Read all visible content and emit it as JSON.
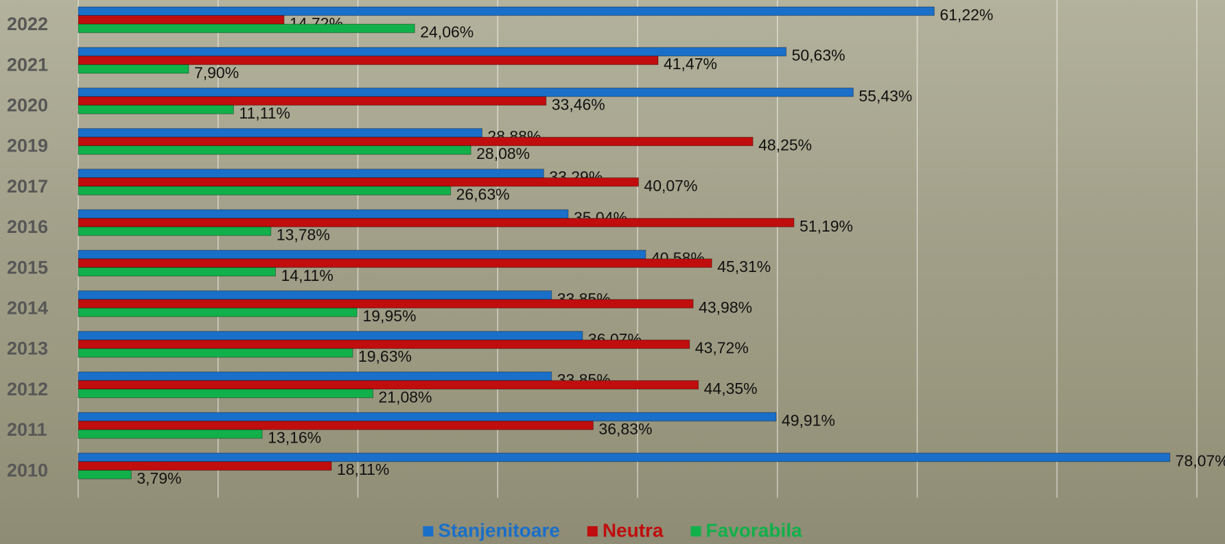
{
  "chart_data": {
    "type": "bar",
    "orientation": "horizontal",
    "categories": [
      "2022",
      "2021",
      "2020",
      "2019",
      "2017",
      "2016",
      "2015",
      "2014",
      "2013",
      "2012",
      "2011",
      "2010"
    ],
    "series": [
      {
        "name": "Stanjenitoare",
        "color": "#1a6fc9",
        "values": [
          61.22,
          50.63,
          55.43,
          28.88,
          33.29,
          35.04,
          40.58,
          33.85,
          36.07,
          33.85,
          49.91,
          78.07
        ],
        "value_labels": [
          "61,22%",
          "50,63%",
          "55,43%",
          "28,88%",
          "33,29%",
          "35,04%",
          "40,58%",
          "33,85%",
          "36,07%",
          "33,85%",
          "49,91%",
          "78,07%"
        ]
      },
      {
        "name": "Neutra",
        "color": "#c00d0d",
        "values": [
          14.72,
          41.47,
          33.46,
          48.25,
          40.07,
          51.19,
          45.31,
          43.98,
          43.72,
          44.35,
          36.83,
          18.11
        ],
        "value_labels": [
          "14,72%",
          "41,47%",
          "33,46%",
          "48,25%",
          "40,07%",
          "51,19%",
          "45,31%",
          "43,98%",
          "43,72%",
          "44,35%",
          "36,83%",
          "18,11%"
        ]
      },
      {
        "name": "Favorabila",
        "color": "#12b04a",
        "values": [
          24.06,
          7.9,
          11.11,
          28.08,
          26.63,
          13.78,
          14.11,
          19.95,
          19.63,
          21.08,
          13.16,
          3.79
        ],
        "value_labels": [
          "24,06%",
          "7,90%",
          "11,11%",
          "28,08%",
          "26,63%",
          "13,78%",
          "14,11%",
          "19,95%",
          "19,63%",
          "21,08%",
          "13,16%",
          "3,79%"
        ]
      }
    ],
    "xlim": [
      0,
      80
    ],
    "xticks": [
      0,
      10,
      20,
      30,
      40,
      50,
      60,
      70,
      80
    ],
    "tick_labels": false,
    "grid": true,
    "legend": "bottom"
  }
}
